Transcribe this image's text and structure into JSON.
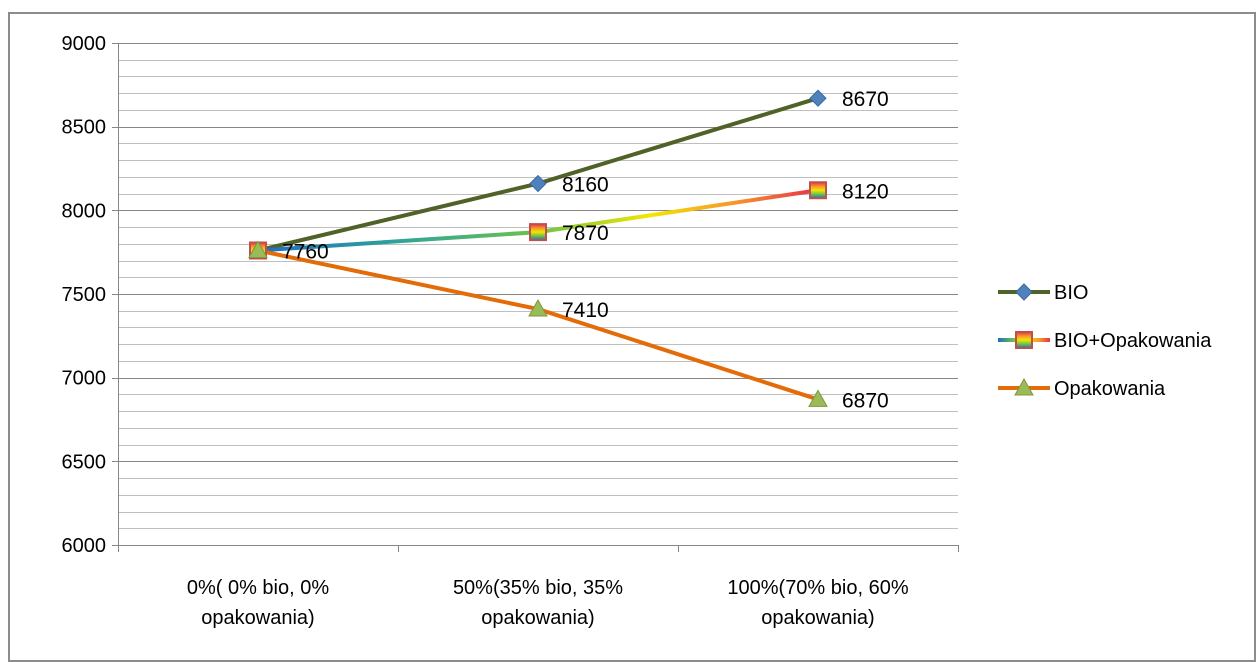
{
  "chart_data": {
    "type": "line",
    "categories": [
      [
        "0%( 0% bio, 0%",
        "opakowania)"
      ],
      [
        "50%(35% bio, 35%",
        "opakowania)"
      ],
      [
        "100%(70% bio, 60%",
        "opakowania)"
      ]
    ],
    "ylim": [
      6000,
      9000
    ],
    "ymajor": 500,
    "yminor": 100,
    "yticks": [
      "6000",
      "6500",
      "7000",
      "7500",
      "8000",
      "8500",
      "9000"
    ],
    "grid": true,
    "legend_position": "right",
    "series": [
      {
        "name": "BIO",
        "values": [
          7760,
          8160,
          8670
        ],
        "labels": [
          "7760",
          "8160",
          "8670"
        ],
        "color": "#4f6228",
        "marker": "diamond",
        "marker_color": "#4f81bd"
      },
      {
        "name": "BIO+Opakowania",
        "values": [
          7760,
          7870,
          8120
        ],
        "labels": [
          "7760",
          "7870",
          "8120"
        ],
        "color": "rainbow",
        "marker": "square",
        "marker_color": "#c0504d"
      },
      {
        "name": "Opakowania",
        "values": [
          7760,
          7410,
          6870
        ],
        "labels": [
          "7760",
          "7410",
          "6870"
        ],
        "color": "#e36c09",
        "marker": "triangle",
        "marker_color": "#9bbb59"
      }
    ]
  }
}
